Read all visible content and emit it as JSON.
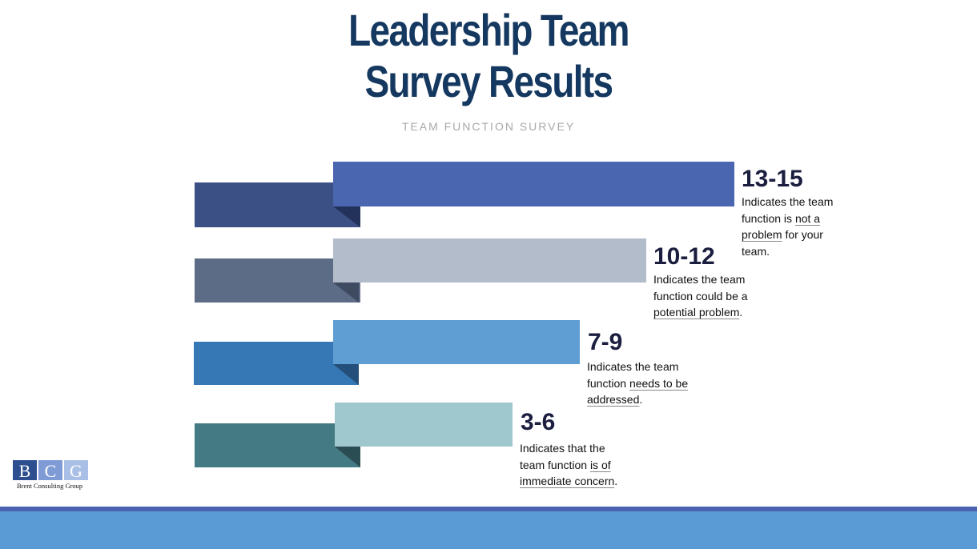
{
  "title_line1": "Leadership Team",
  "title_line2": "Survey Results",
  "subtitle": "TEAM FUNCTION SURVEY",
  "rows": [
    {
      "range": "13-15",
      "desc_parts": [
        "Indicates the team",
        "function is ",
        "not a",
        "problem",
        " for your",
        "team."
      ],
      "colors": {
        "front": "#4a66b0",
        "back": "#3b5186"
      }
    },
    {
      "range": "10-12",
      "desc_parts": [
        "Indicates the team",
        "function could be a",
        "potential problem",
        "."
      ],
      "colors": {
        "front": "#b2bccb",
        "back": "#5c6b86"
      }
    },
    {
      "range": "7-9",
      "desc_parts": [
        "Indicates the team",
        "function ",
        "needs to be",
        "addressed",
        "."
      ],
      "colors": {
        "front": "#5f9ed3",
        "back": "#3578b5"
      }
    },
    {
      "range": "3-6",
      "desc_parts": [
        "Indicates that the",
        "team function ",
        "is of",
        "immediate concern",
        "."
      ],
      "colors": {
        "front": "#9fc7ce",
        "back": "#437a83"
      }
    }
  ],
  "logo": {
    "letters": [
      "B",
      "C",
      "G"
    ],
    "caption": "Brent Consulting Group",
    "colors": [
      "#2e4f8f",
      "#7e9bd6",
      "#a9bfe6"
    ]
  }
}
